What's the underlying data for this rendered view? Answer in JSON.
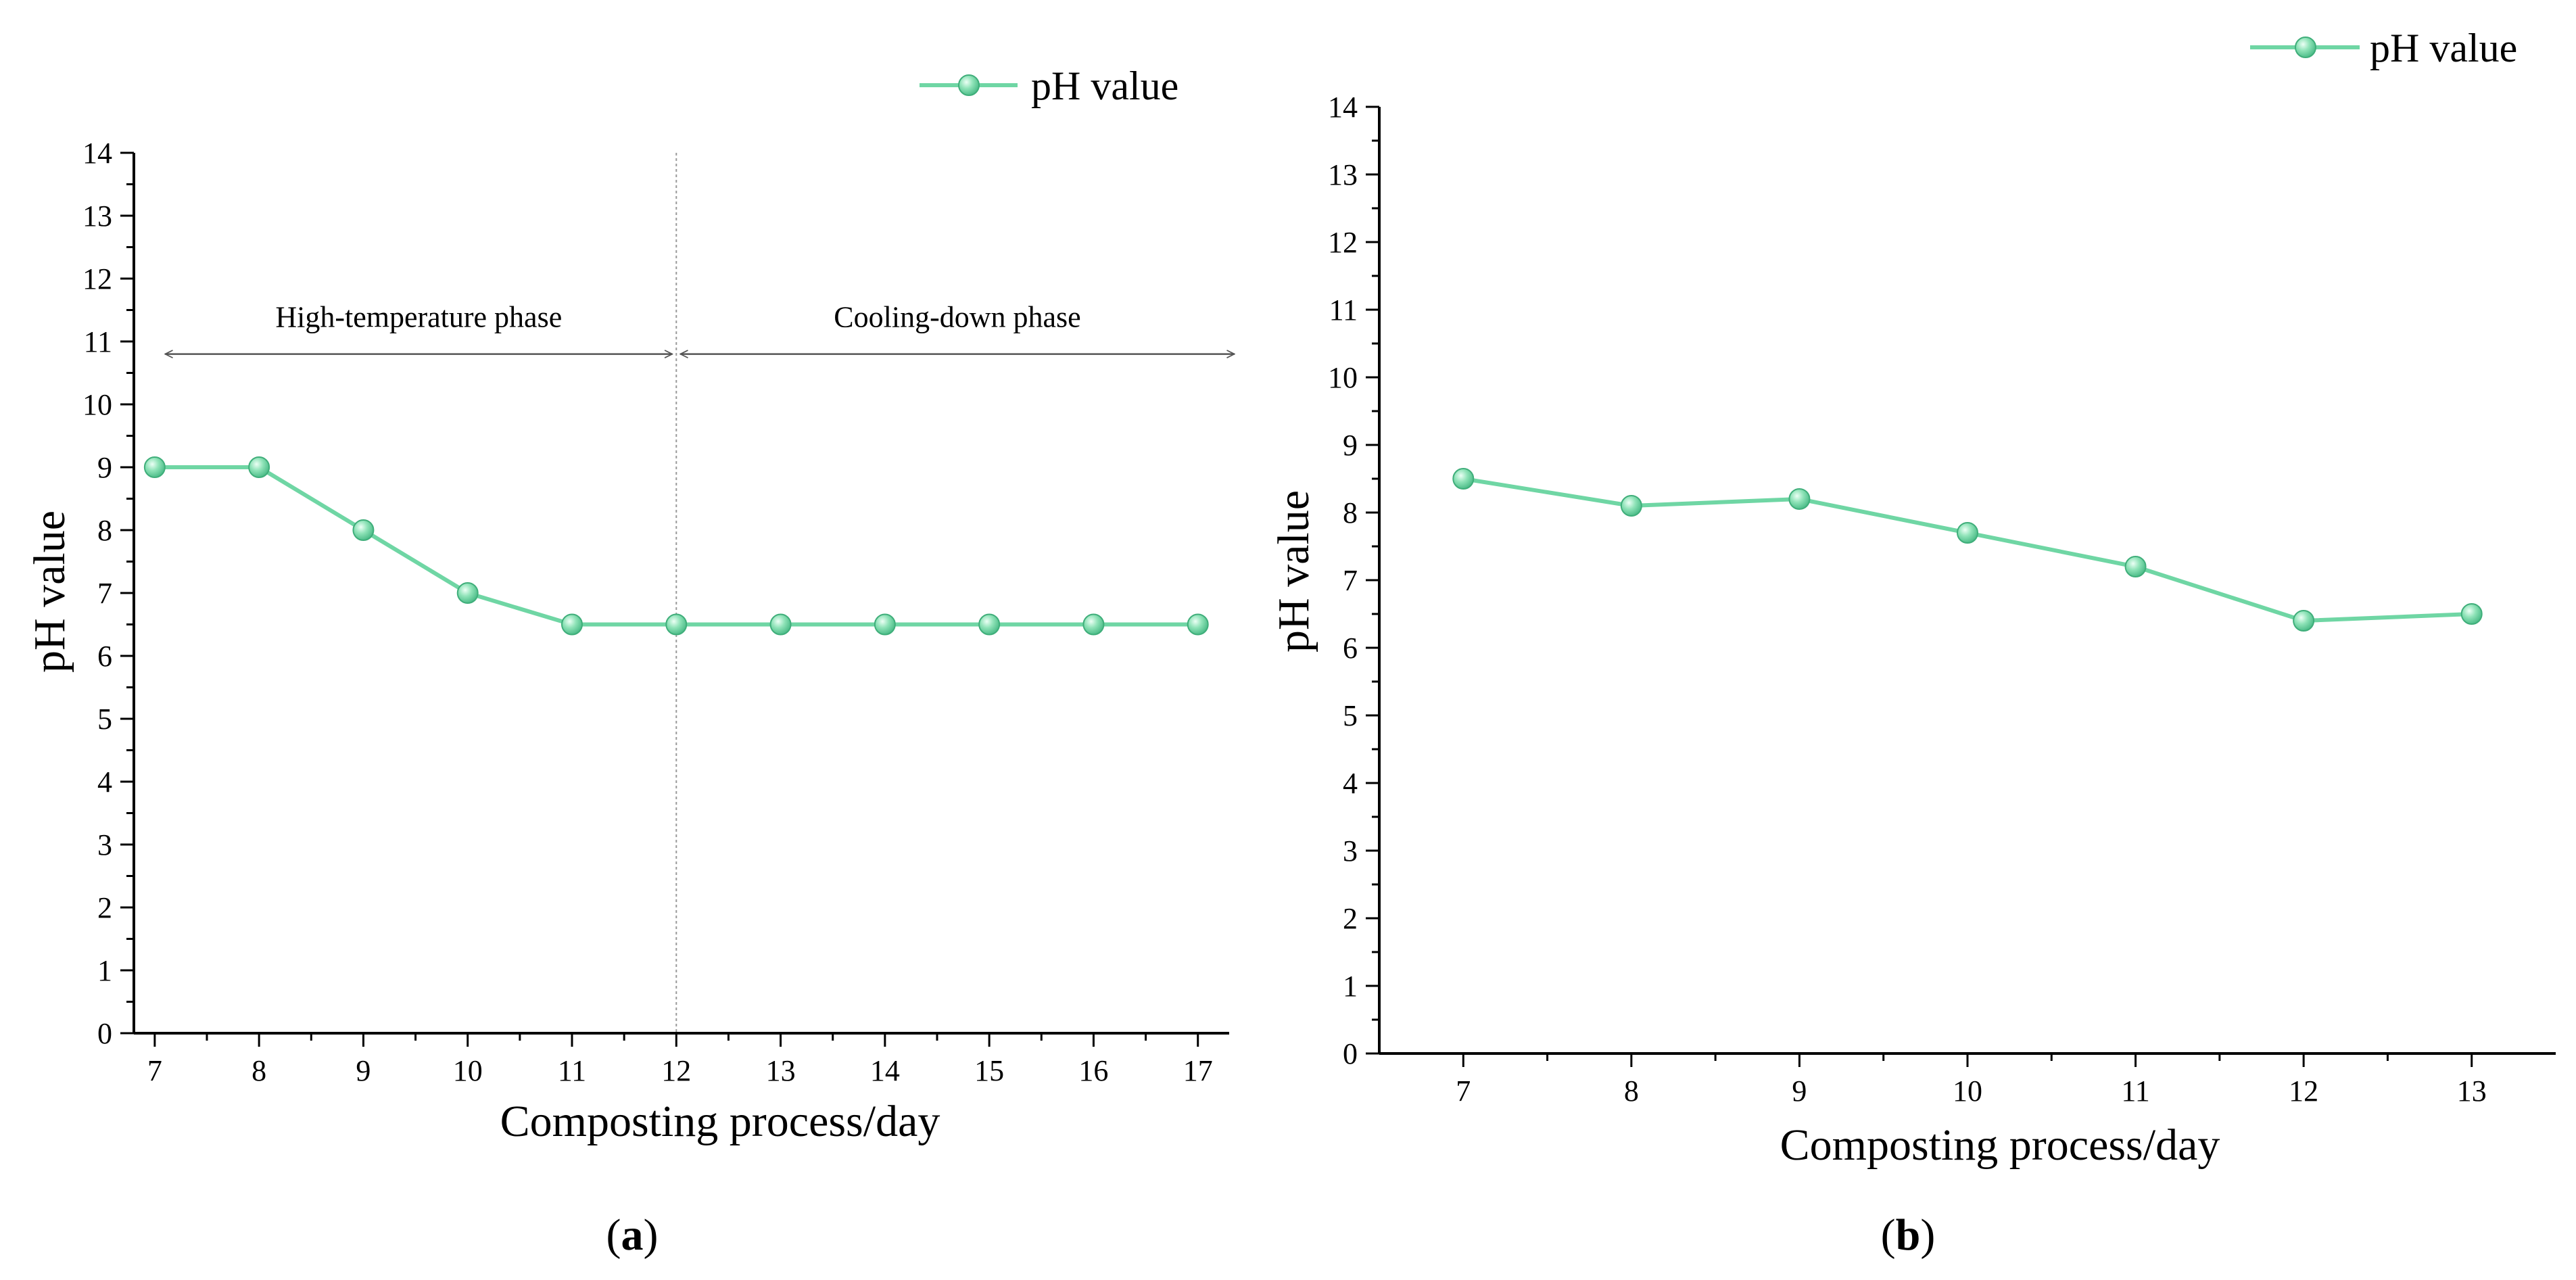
{
  "colors": {
    "series": "#6fd6a4",
    "marker_edge": "#3fae7a",
    "axis": "#000000",
    "divider": "#999999",
    "arrow": "#555555"
  },
  "chart_data": [
    {
      "type": "line",
      "panel": "a",
      "panel_label": "a",
      "xlabel": "Composting process/day",
      "ylabel": "pH value",
      "legend": "pH value",
      "legend_position": "top-right",
      "x": [
        7,
        8,
        9,
        10,
        11,
        12,
        13,
        14,
        15,
        16,
        17
      ],
      "series": [
        {
          "name": "pH value",
          "values": [
            9,
            9,
            8,
            7,
            6.5,
            6.5,
            6.5,
            6.5,
            6.5,
            6.5,
            6.5
          ]
        }
      ],
      "xlim": [
        6.8,
        17.3
      ],
      "ylim": [
        0,
        14
      ],
      "yticks": [
        0,
        1,
        2,
        3,
        4,
        5,
        6,
        7,
        8,
        9,
        10,
        11,
        12,
        13,
        14
      ],
      "phases": [
        {
          "label": "High-temperature phase",
          "from": 7.1,
          "to": 12
        },
        {
          "label": "Cooling-down phase",
          "from": 12,
          "to": 17.35
        }
      ],
      "divider_x": 12
    },
    {
      "type": "line",
      "panel": "b",
      "panel_label": "b",
      "xlabel": "Composting process/day",
      "ylabel": "pH value",
      "legend": "pH value",
      "legend_position": "top-right",
      "x": [
        7,
        8,
        9,
        10,
        11,
        12,
        13
      ],
      "series": [
        {
          "name": "pH value",
          "values": [
            8.5,
            8.1,
            8.2,
            7.7,
            7.2,
            6.4,
            6.5
          ]
        }
      ],
      "xlim": [
        6.5,
        13.5
      ],
      "ylim": [
        0,
        14
      ],
      "yticks": [
        0,
        1,
        2,
        3,
        4,
        5,
        6,
        7,
        8,
        9,
        10,
        11,
        12,
        13,
        14
      ]
    }
  ]
}
